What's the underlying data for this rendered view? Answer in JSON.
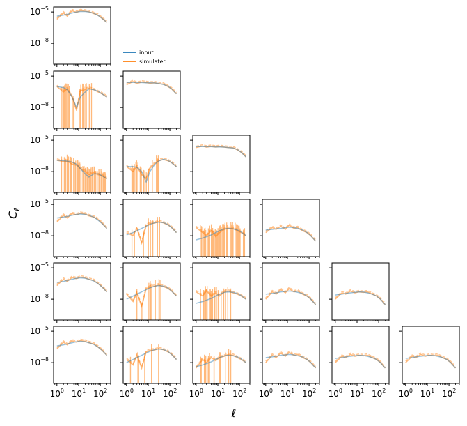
{
  "chart_data": {
    "type": "line",
    "layout": "lower-triangular grid, 6 rows x 6 columns",
    "xlabel": "ℓ",
    "ylabel": "C_ℓ",
    "x_scale": "log",
    "y_scale": "log",
    "xlim": [
      0.7,
      300
    ],
    "ylim": [
      1e-10,
      3e-05
    ],
    "x_ticks": [
      1,
      10,
      100
    ],
    "x_tick_labels": [
      "10^0",
      "10^1",
      "10^2"
    ],
    "y_ticks": [
      1e-05,
      1e-08
    ],
    "y_tick_labels": [
      "10^-5",
      "10^-8"
    ],
    "legend": {
      "placement": "right of top-left panel",
      "entries": [
        {
          "label": "input",
          "color": "#1f77b4"
        },
        {
          "label": "simulated",
          "color": "#ff7f0e"
        }
      ]
    },
    "series_style": {
      "input": {
        "color": "#1f77b4",
        "alpha": 0.45
      },
      "simulated": {
        "color": "#ff7f0e",
        "alpha": 0.5
      }
    },
    "ell": [
      1,
      2,
      3,
      5,
      8,
      12,
      20,
      30,
      50,
      80,
      120,
      200
    ],
    "panels": [
      {
        "row": 0,
        "col": 0,
        "input": [
          4e-06,
          5e-06,
          6e-06,
          8e-06,
          1e-05,
          1.1e-05,
          1.1e-05,
          1e-05,
          7.5e-06,
          4.5e-06,
          2.5e-06,
          1e-06
        ],
        "simulated": [
          2e-06,
          8e-06,
          4e-06,
          1.3e-05,
          9e-06,
          1.3e-05,
          1.2e-05,
          1.05e-05,
          7e-06,
          4.8e-06,
          2.4e-06,
          1e-06
        ],
        "oscillation": "none"
      },
      {
        "row": 1,
        "col": 0,
        "input": [
          1e-06,
          8e-07,
          5e-07,
          1e-07,
          1e-08,
          1e-07,
          3e-07,
          6e-07,
          5e-07,
          3.5e-07,
          2e-07,
          1e-07
        ],
        "simulated": [
          1e-06,
          3e-07,
          6e-07,
          1e-07,
          5e-09,
          4e-07,
          5e-07,
          7e-07,
          5e-07,
          3e-07,
          2e-07,
          1e-07
        ],
        "oscillation": "moderate"
      },
      {
        "row": 1,
        "col": 1,
        "input": [
          2.5e-06,
          2.5e-06,
          2.4e-06,
          2.4e-06,
          2.3e-06,
          2.3e-06,
          2.2e-06,
          2e-06,
          1.6e-06,
          1.1e-06,
          6e-07,
          2e-07
        ],
        "simulated": [
          1.5e-06,
          3e-06,
          2e-06,
          2.7e-06,
          2.4e-06,
          2.1e-06,
          2.3e-06,
          1.9e-06,
          1.7e-06,
          1e-06,
          6e-07,
          2e-07
        ],
        "oscillation": "none"
      },
      {
        "row": 2,
        "col": 0,
        "input": [
          1.2e-07,
          1.1e-07,
          1e-07,
          8e-08,
          5e-08,
          2e-08,
          6e-09,
          3e-09,
          6e-09,
          6e-09,
          4e-09,
          2e-09
        ],
        "simulated": [
          1.2e-07,
          9e-08,
          1e-07,
          5e-08,
          4e-08,
          2e-08,
          1e-08,
          5e-09,
          8e-09,
          5e-09,
          4e-09,
          2e-09
        ],
        "oscillation": "heavy"
      },
      {
        "row": 2,
        "col": 1,
        "input": [
          3e-08,
          3e-08,
          2.5e-08,
          1e-08,
          1e-09,
          1e-08,
          5e-08,
          1e-07,
          1.5e-07,
          1.2e-07,
          7e-08,
          3e-08
        ],
        "simulated": [
          3e-08,
          1e-08,
          3e-08,
          5e-09,
          2e-09,
          2e-08,
          6e-08,
          1.1e-07,
          1.4e-07,
          1.1e-07,
          7e-08,
          3e-08
        ],
        "oscillation": "moderate"
      },
      {
        "row": 2,
        "col": 2,
        "input": [
          2.5e-06,
          2.5e-06,
          2.4e-06,
          2.4e-06,
          2.3e-06,
          2.3e-06,
          2.2e-06,
          2e-06,
          1.8e-06,
          1.3e-06,
          7e-07,
          2.5e-07
        ],
        "simulated": [
          2e-06,
          2.8e-06,
          2.2e-06,
          2.6e-06,
          2.2e-06,
          2.5e-06,
          2.2e-06,
          2e-06,
          1.9e-06,
          1.2e-06,
          7e-07,
          2.5e-07
        ],
        "oscillation": "none"
      },
      {
        "row": 3,
        "col": 0,
        "input": [
          5e-07,
          6e-07,
          7e-07,
          9e-07,
          1.1e-06,
          1.2e-06,
          1.1e-06,
          9e-07,
          6e-07,
          3e-07,
          1.5e-07,
          5e-08
        ],
        "simulated": [
          2e-07,
          9e-07,
          5e-07,
          1.3e-06,
          1e-06,
          1.4e-06,
          1.2e-06,
          8e-07,
          6e-07,
          3.5e-07,
          1.5e-07,
          5e-08
        ],
        "oscillation": "none"
      },
      {
        "row": 3,
        "col": 1,
        "input": [
          1.2e-08,
          2e-08,
          3e-08,
          5e-08,
          8e-08,
          1.2e-07,
          1.8e-07,
          2e-07,
          1.8e-07,
          1.2e-07,
          6e-08,
          2e-08
        ],
        "simulated": [
          2e-08,
          1e-08,
          5e-08,
          2e-09,
          9e-08,
          1.5e-07,
          1.6e-07,
          2.2e-07,
          1.7e-07,
          1.1e-07,
          6e-08,
          2e-08
        ],
        "oscillation": "light"
      },
      {
        "row": 3,
        "col": 2,
        "input": [
          4e-09,
          6e-09,
          8e-09,
          1.2e-08,
          2e-08,
          3e-08,
          4.5e-08,
          5e-08,
          4.5e-08,
          3.5e-08,
          2.2e-08,
          1e-08
        ],
        "simulated": [
          6e-08,
          2e-08,
          1e-08,
          3e-08,
          8e-09,
          2e-08,
          4e-08,
          5e-08,
          5e-08,
          3e-08,
          2e-08,
          1e-08
        ],
        "oscillation": "heavy"
      },
      {
        "row": 3,
        "col": 3,
        "input": [
          3.5e-08,
          4e-08,
          4.5e-08,
          5e-08,
          6e-08,
          6.5e-08,
          6e-08,
          5e-08,
          3.5e-08,
          2e-08,
          1e-08,
          3e-09
        ],
        "simulated": [
          2e-08,
          6e-08,
          4e-08,
          8e-08,
          4e-08,
          1e-07,
          5e-08,
          6e-08,
          3e-08,
          2e-08,
          1e-08,
          3e-09
        ],
        "oscillation": "none"
      },
      {
        "row": 4,
        "col": 0,
        "input": [
          4e-07,
          5e-07,
          6e-07,
          8e-07,
          1e-06,
          1.1e-06,
          1e-06,
          8e-07,
          5.5e-07,
          3e-07,
          1.5e-07,
          5e-08
        ],
        "simulated": [
          2e-07,
          8e-07,
          5e-07,
          1.2e-06,
          9e-07,
          1.3e-06,
          1.1e-06,
          8e-07,
          6e-07,
          3e-07,
          1.5e-07,
          5e-08
        ],
        "oscillation": "none"
      },
      {
        "row": 4,
        "col": 1,
        "input": [
          1e-08,
          2e-08,
          3e-08,
          5e-08,
          8e-08,
          1.2e-07,
          1.8e-07,
          2e-07,
          1.8e-07,
          1.2e-07,
          6e-08,
          2e-08
        ],
        "simulated": [
          3e-08,
          6e-09,
          4e-08,
          2e-09,
          1e-07,
          1.4e-07,
          1.7e-07,
          2.3e-07,
          1.6e-07,
          1.1e-07,
          6e-08,
          2e-08
        ],
        "oscillation": "light"
      },
      {
        "row": 4,
        "col": 2,
        "input": [
          4e-09,
          6e-09,
          8e-09,
          1.2e-08,
          2e-08,
          3e-08,
          4.5e-08,
          5e-08,
          4.5e-08,
          3.5e-08,
          2.2e-08,
          1e-08
        ],
        "simulated": [
          5e-08,
          2e-08,
          6e-08,
          2e-08,
          4e-08,
          2e-08,
          5e-08,
          6e-08,
          4e-08,
          3e-08,
          2e-08,
          1e-08
        ],
        "oscillation": "moderate"
      },
      {
        "row": 4,
        "col": 3,
        "input": [
          3e-08,
          3.5e-08,
          4e-08,
          5e-08,
          5.5e-08,
          6e-08,
          5.5e-08,
          4.5e-08,
          3.5e-08,
          2e-08,
          1e-08,
          3e-09
        ],
        "simulated": [
          1e-08,
          5e-08,
          3e-08,
          8e-08,
          4e-08,
          1e-07,
          5e-08,
          6e-08,
          3e-08,
          2e-08,
          1e-08,
          3e-09
        ],
        "oscillation": "none"
      },
      {
        "row": 4,
        "col": 4,
        "input": [
          2.5e-08,
          3e-08,
          3.5e-08,
          4e-08,
          4.5e-08,
          5e-08,
          4.8e-08,
          4e-08,
          3e-08,
          2e-08,
          1e-08,
          3e-09
        ],
        "simulated": [
          1e-08,
          4e-08,
          3e-08,
          6e-08,
          4e-08,
          5e-08,
          4.5e-08,
          5e-08,
          3e-08,
          2e-08,
          1e-08,
          3e-09
        ],
        "oscillation": "none"
      },
      {
        "row": 5,
        "col": 0,
        "input": [
          4e-07,
          5e-07,
          6e-07,
          8e-07,
          1e-06,
          1.1e-06,
          1e-06,
          8e-07,
          5.5e-07,
          3e-07,
          1.5e-07,
          5e-08
        ],
        "simulated": [
          2e-07,
          9e-07,
          5e-07,
          1.2e-06,
          9e-07,
          1.3e-06,
          1.1e-06,
          8e-07,
          6e-07,
          3e-07,
          1.5e-07,
          5e-08
        ],
        "oscillation": "none"
      },
      {
        "row": 5,
        "col": 1,
        "input": [
          1e-08,
          2e-08,
          3e-08,
          5e-08,
          8e-08,
          1.2e-07,
          1.8e-07,
          2e-07,
          1.8e-07,
          1.2e-07,
          6e-08,
          2e-08
        ],
        "simulated": [
          2e-08,
          6e-09,
          5e-08,
          3e-09,
          1e-07,
          1.5e-07,
          1.6e-07,
          2.2e-07,
          1.7e-07,
          1.1e-07,
          6e-08,
          2e-08
        ],
        "oscillation": "light"
      },
      {
        "row": 5,
        "col": 2,
        "input": [
          4e-09,
          6e-09,
          8e-09,
          1.2e-08,
          2e-08,
          3e-08,
          4.5e-08,
          5e-08,
          4.5e-08,
          3.5e-08,
          2.2e-08,
          1e-08
        ],
        "simulated": [
          3e-09,
          2e-08,
          1e-08,
          3e-08,
          1.5e-08,
          3e-08,
          4e-08,
          6e-08,
          5e-08,
          3e-08,
          2e-08,
          1e-08
        ],
        "oscillation": "moderate"
      },
      {
        "row": 5,
        "col": 3,
        "input": [
          3e-08,
          3.5e-08,
          4e-08,
          5e-08,
          5.5e-08,
          6e-08,
          5.5e-08,
          4.5e-08,
          3.5e-08,
          2e-08,
          1e-08,
          3e-09
        ],
        "simulated": [
          1e-08,
          5e-08,
          3e-08,
          8e-08,
          4e-08,
          9e-08,
          5e-08,
          6e-08,
          3e-08,
          2e-08,
          1e-08,
          3e-09
        ],
        "oscillation": "none"
      },
      {
        "row": 5,
        "col": 4,
        "input": [
          2.5e-08,
          3e-08,
          3.5e-08,
          4e-08,
          4.5e-08,
          5e-08,
          4.8e-08,
          4e-08,
          3e-08,
          2e-08,
          1e-08,
          3e-09
        ],
        "simulated": [
          1e-08,
          4e-08,
          3e-08,
          6e-08,
          4e-08,
          5e-08,
          4.5e-08,
          5e-08,
          3e-08,
          2e-08,
          1e-08,
          3e-09
        ],
        "oscillation": "none"
      },
      {
        "row": 5,
        "col": 5,
        "input": [
          2.5e-08,
          3e-08,
          3.5e-08,
          4e-08,
          4.5e-08,
          5e-08,
          4.8e-08,
          4e-08,
          3e-08,
          2e-08,
          1e-08,
          3e-09
        ],
        "simulated": [
          1e-08,
          4e-08,
          3e-08,
          6e-08,
          4e-08,
          5e-08,
          4.5e-08,
          5e-08,
          3e-08,
          2e-08,
          1e-08,
          3e-09
        ],
        "oscillation": "none"
      }
    ]
  }
}
